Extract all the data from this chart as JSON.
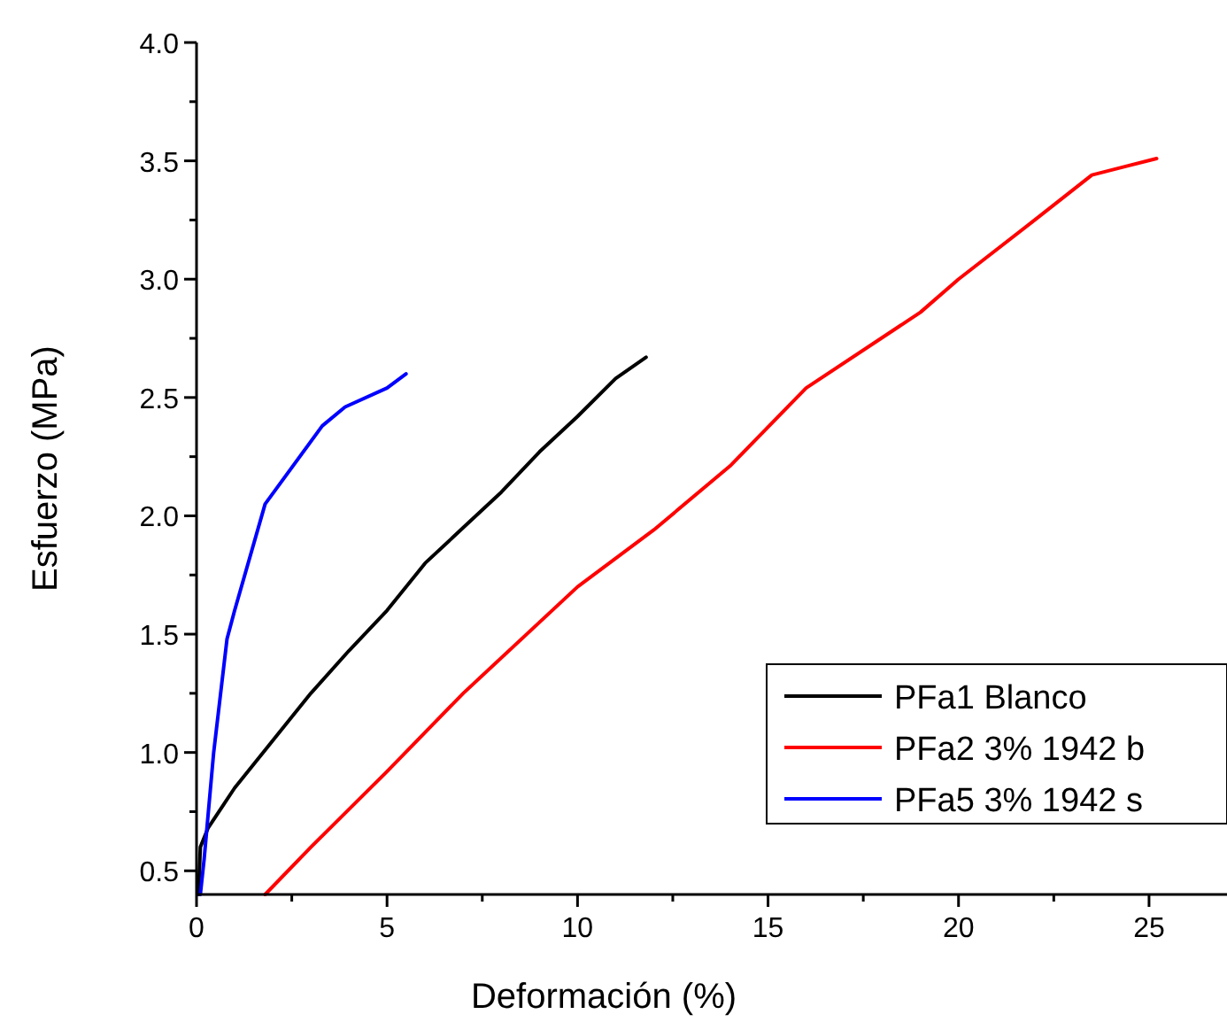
{
  "chart_data": {
    "type": "line",
    "xlabel": "Deformación (%)",
    "ylabel": "Esfuerzo (MPa)",
    "xlim": [
      0,
      27
    ],
    "ylim": [
      0.4,
      4.0
    ],
    "xticks": [
      0,
      {
        "value": 2.5,
        "label": null
      },
      5,
      {
        "value": 7.5,
        "label": null
      },
      10,
      {
        "value": 12.5,
        "label": null
      },
      15,
      {
        "value": 17.5,
        "label": null
      },
      20,
      {
        "value": 22.5,
        "label": null
      },
      25
    ],
    "yticks": [
      {
        "value": 0.5,
        "label": "0.5"
      },
      {
        "value": 0.75,
        "label": null
      },
      {
        "value": 1.0,
        "label": "1.0"
      },
      {
        "value": 1.25,
        "label": null
      },
      {
        "value": 1.5,
        "label": "1.5"
      },
      {
        "value": 1.75,
        "label": null
      },
      {
        "value": 2.0,
        "label": "2.0"
      },
      {
        "value": 2.25,
        "label": null
      },
      {
        "value": 2.5,
        "label": "2.5"
      },
      {
        "value": 2.75,
        "label": null
      },
      {
        "value": 3.0,
        "label": "3.0"
      },
      {
        "value": 3.25,
        "label": null
      },
      {
        "value": 3.5,
        "label": "3.5"
      },
      {
        "value": 3.75,
        "label": null
      },
      {
        "value": 4.0,
        "label": "4.0"
      }
    ],
    "legend": "bottom right",
    "grid": false,
    "marker": "none",
    "line_style": "solid",
    "series": [
      {
        "name": "PFa1 Blanco",
        "color": "#000000",
        "x": [
          0.05,
          0.1,
          0.3,
          1,
          2,
          3,
          4,
          5,
          6,
          7,
          8,
          9,
          10,
          11,
          11.8
        ],
        "values": [
          0.4,
          0.6,
          0.68,
          0.85,
          1.05,
          1.25,
          1.43,
          1.6,
          1.8,
          1.95,
          2.1,
          2.27,
          2.42,
          2.58,
          2.67
        ]
      },
      {
        "name": "PFa2 3% 1942 b",
        "color": "#ff0000",
        "x": [
          1.8,
          3,
          5,
          7,
          10,
          12,
          14,
          16,
          19,
          20,
          22,
          23.5,
          25.2
        ],
        "values": [
          0.4,
          0.6,
          0.92,
          1.25,
          1.7,
          1.94,
          2.21,
          2.54,
          2.86,
          3.0,
          3.25,
          3.44,
          3.51
        ]
      },
      {
        "name": "PFa5 3% 1942 s",
        "color": "#0000ff",
        "x": [
          0.1,
          0.2,
          0.45,
          0.8,
          1,
          1.8,
          3.3,
          3.9,
          5,
          5.5
        ],
        "values": [
          0.4,
          0.55,
          1.0,
          1.48,
          1.6,
          2.05,
          2.38,
          2.46,
          2.54,
          2.6
        ]
      }
    ]
  }
}
